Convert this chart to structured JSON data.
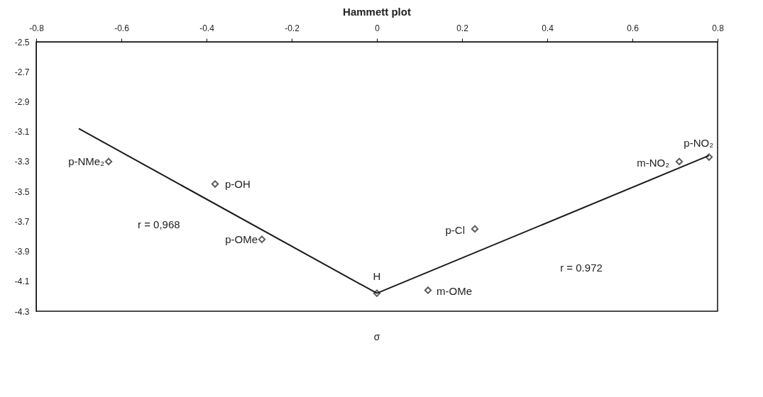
{
  "chart_data": {
    "type": "scatter",
    "title": "Hammett plot",
    "xlabel": "σ",
    "xlim": [
      -0.8,
      0.8
    ],
    "xticks": [
      -0.8,
      -0.6,
      -0.4,
      -0.2,
      0,
      0.2,
      0.4,
      0.6,
      0.8
    ],
    "ylim": [
      -4.3,
      -2.5
    ],
    "yticks": [
      -2.5,
      -2.7,
      -2.9,
      -3.1,
      -3.3,
      -3.5,
      -3.7,
      -3.9,
      -4.1,
      -4.3
    ],
    "grid": false,
    "marker": "diamond",
    "series": [
      {
        "color": "#1a1a1a",
        "x": [
          -0.63,
          -0.38,
          -0.27,
          0,
          0.12,
          0.23,
          0.71,
          0.78
        ],
        "values": [
          -3.3,
          -3.45,
          -3.82,
          -4.18,
          -4.16,
          -3.75,
          -3.3,
          -3.27
        ]
      },
      {
        "type": "line",
        "marker": "none",
        "color": "#1a1a1a",
        "x": [
          -0.7,
          0
        ],
        "values": [
          -3.08,
          -4.18
        ]
      },
      {
        "type": "line",
        "marker": "none",
        "color": "#1a1a1a",
        "x": [
          0,
          0.78
        ],
        "values": [
          -4.18,
          -3.26
        ]
      }
    ],
    "annotations": [
      {
        "text": "p-NMe₂",
        "x": -0.63,
        "y": -3.3
      },
      {
        "text": "p-OH",
        "x": -0.38,
        "y": -3.45
      },
      {
        "text": "p-OMe",
        "x": -0.27,
        "y": -3.82
      },
      {
        "text": "H",
        "x": 0,
        "y": -4.18
      },
      {
        "text": "m-OMe",
        "x": 0.12,
        "y": -4.16
      },
      {
        "text": "p-Cl",
        "x": 0.23,
        "y": -3.75
      },
      {
        "text": "m-NO₂",
        "x": 0.71,
        "y": -3.3
      },
      {
        "text": "p-NO₂",
        "x": 0.78,
        "y": -3.27
      },
      "r = 0,968",
      "r = 0.972"
    ]
  }
}
